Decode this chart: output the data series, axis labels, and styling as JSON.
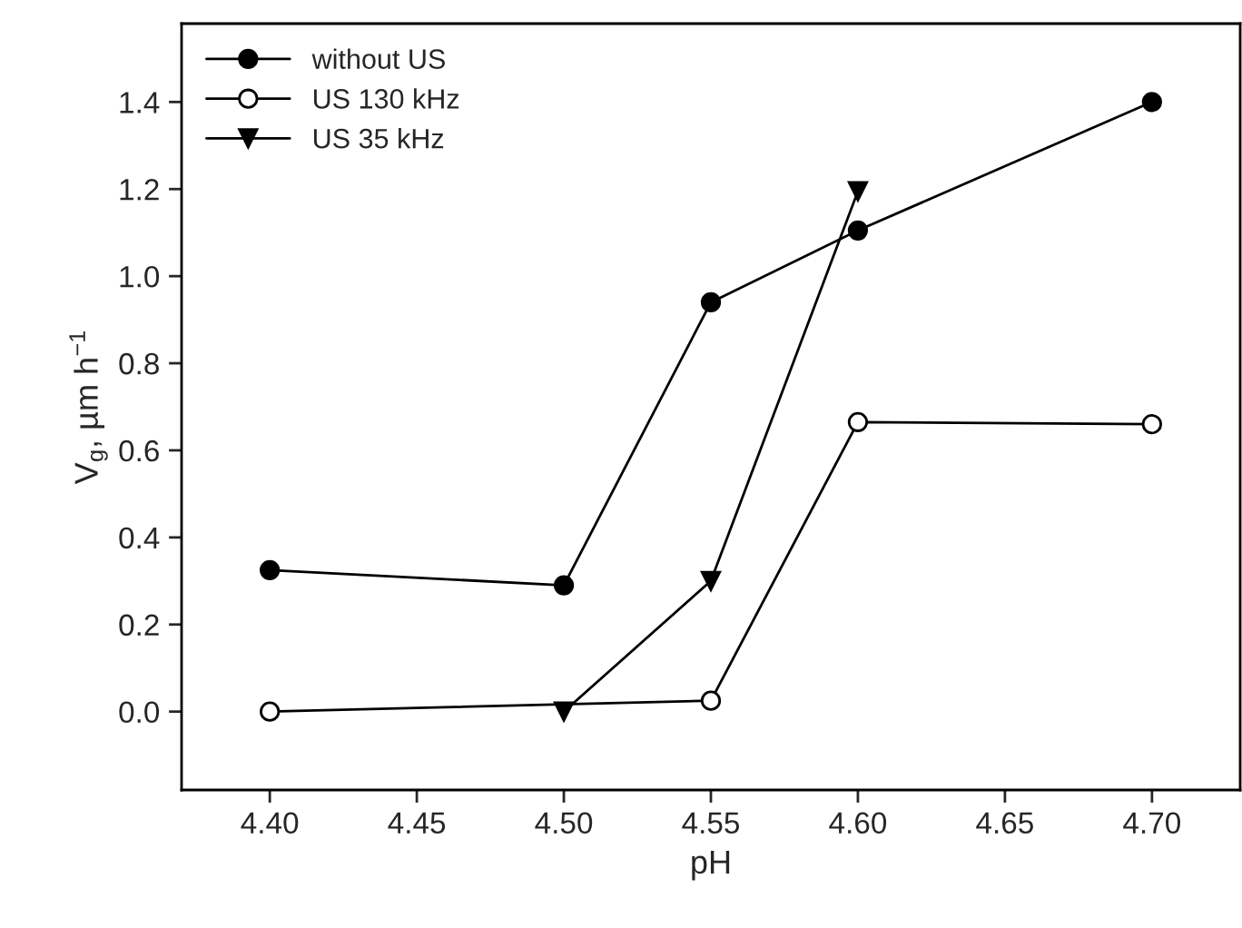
{
  "chart_data": {
    "type": "line",
    "xlabel": "pH",
    "ylabel": "V$_{g}$, µm h$^{−1}$",
    "xlim": [
      4.37,
      4.73
    ],
    "xticks": [
      {
        "value": 4.4,
        "label": "4.40"
      },
      {
        "value": 4.45,
        "label": "4.45"
      },
      {
        "value": 4.5,
        "label": "4.50"
      },
      {
        "value": 4.55,
        "label": "4.55"
      },
      {
        "value": 4.6,
        "label": "4.60"
      },
      {
        "value": 4.65,
        "label": "4.65"
      },
      {
        "value": 4.7,
        "label": "4.70"
      }
    ],
    "ylim": [
      -0.18,
      1.58
    ],
    "yticks": [
      {
        "value": 0,
        "label": "0.0"
      },
      0.2,
      0.4,
      0.6,
      0.8,
      {
        "value": 1,
        "label": "1.0"
      },
      1.2,
      1.4
    ],
    "grid": false,
    "legend": "top left",
    "series": [
      {
        "name": "without US",
        "color": "#000000",
        "marker": "circle",
        "x": [
          4.4,
          4.5,
          4.55,
          4.6,
          4.7
        ],
        "values": [
          0.325,
          0.29,
          0.94,
          1.105,
          1.4
        ]
      },
      {
        "name": "US 130 kHz",
        "color": "#ffffff",
        "marker": "circle",
        "x": [
          4.4,
          4.55,
          4.6,
          4.7
        ],
        "values": [
          0.0,
          0.025,
          0.665,
          0.66
        ]
      },
      {
        "name": "US 35 kHz",
        "color": "#000000",
        "marker": "triangle",
        "x": [
          4.5,
          4.55,
          4.6
        ],
        "values": [
          0.0,
          0.3,
          1.195
        ]
      }
    ]
  }
}
